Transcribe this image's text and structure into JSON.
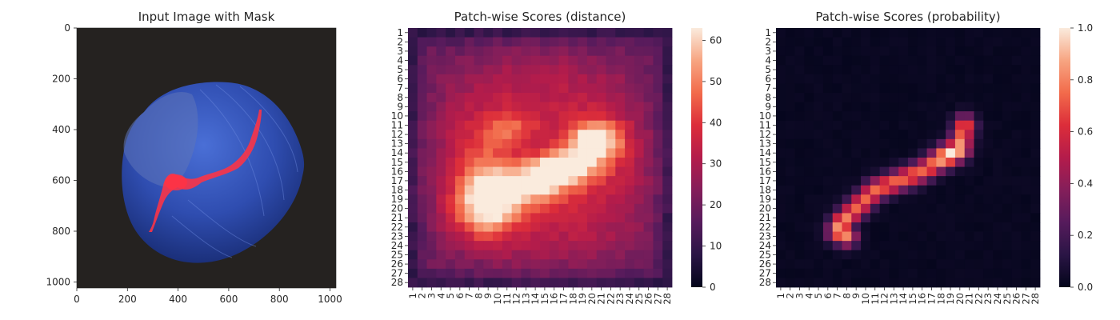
{
  "panels": [
    {
      "title": "Input Image with Mask",
      "type": "image",
      "x_ticks": [
        "0",
        "200",
        "400",
        "600",
        "800",
        "1000"
      ],
      "y_ticks": [
        "0",
        "200",
        "400",
        "600",
        "800",
        "1000"
      ]
    },
    {
      "title": "Patch-wise Scores (distance)",
      "type": "heatmap",
      "colorbar_ticks": [
        "0",
        "10",
        "20",
        "30",
        "40",
        "50",
        "60"
      ]
    },
    {
      "title": "Patch-wise Scores (probability)",
      "type": "heatmap",
      "colorbar_ticks": [
        "0.0",
        "0.2",
        "0.4",
        "0.6",
        "0.8",
        "1.0"
      ]
    }
  ],
  "chart_data": [
    {
      "type": "image",
      "title": "Input Image with Mask",
      "xlim": [
        0,
        1024
      ],
      "ylim": [
        1024,
        0
      ],
      "x_ticks": [
        0,
        200,
        400,
        600,
        800,
        1000
      ],
      "y_ticks": [
        0,
        200,
        400,
        600,
        800,
        1000
      ],
      "content": "blue hazelnut on dark background with a red crack mask",
      "mask_color": "#ff3344"
    },
    {
      "type": "heatmap",
      "title": "Patch-wise Scores (distance)",
      "rows": 28,
      "cols": 28,
      "row_labels": [
        "1",
        "2",
        "3",
        "4",
        "5",
        "6",
        "7",
        "8",
        "9",
        "10",
        "11",
        "12",
        "13",
        "14",
        "15",
        "16",
        "17",
        "18",
        "19",
        "20",
        "21",
        "22",
        "23",
        "24",
        "25",
        "26",
        "27",
        "28"
      ],
      "col_labels": [
        "1",
        "2",
        "3",
        "4",
        "5",
        "6",
        "7",
        "8",
        "9",
        "10",
        "11",
        "12",
        "13",
        "14",
        "15",
        "16",
        "17",
        "18",
        "19",
        "20",
        "21",
        "22",
        "23",
        "24",
        "25",
        "26",
        "27",
        "28"
      ],
      "vmin": 0,
      "vmax": 63,
      "colormap": "rocket",
      "colorbar_ticks": [
        0,
        10,
        20,
        30,
        40,
        50,
        60
      ],
      "background": 22,
      "structure": [
        {
          "kind": "gradient",
          "value": 13,
          "description": "darker border around the grid"
        },
        {
          "kind": "ring",
          "cx": 14.5,
          "cy": 15.0,
          "rx": 9.5,
          "ry": 9.0,
          "sigma": 2.5,
          "value": 11
        },
        {
          "kind": "blob",
          "cx": 20.3,
          "cy": 12.8,
          "rx": 2.8,
          "ry": 2.2,
          "value": 40
        },
        {
          "kind": "blob",
          "cx": 16.5,
          "cy": 15.7,
          "rx": 3.8,
          "ry": 2.0,
          "value": 40
        },
        {
          "kind": "blob",
          "cx": 12.0,
          "cy": 17.8,
          "rx": 4.8,
          "ry": 2.2,
          "value": 34
        },
        {
          "kind": "blob",
          "cx": 8.8,
          "cy": 20.5,
          "rx": 3.2,
          "ry": 2.6,
          "value": 30
        },
        {
          "kind": "blob",
          "cx": 11.5,
          "cy": 11.5,
          "rx": 3.0,
          "ry": 2.0,
          "value": 16
        },
        {
          "kind": "blob",
          "cx": 8.5,
          "cy": 15.5,
          "rx": 2.5,
          "ry": 3.5,
          "value": 12
        }
      ]
    },
    {
      "type": "heatmap",
      "title": "Patch-wise Scores (probability)",
      "rows": 28,
      "cols": 28,
      "row_labels": [
        "1",
        "2",
        "3",
        "4",
        "5",
        "6",
        "7",
        "8",
        "9",
        "10",
        "11",
        "12",
        "13",
        "14",
        "15",
        "16",
        "17",
        "18",
        "19",
        "20",
        "21",
        "22",
        "23",
        "24",
        "25",
        "26",
        "27",
        "28"
      ],
      "col_labels": [
        "1",
        "2",
        "3",
        "4",
        "5",
        "6",
        "7",
        "8",
        "9",
        "10",
        "11",
        "12",
        "13",
        "14",
        "15",
        "16",
        "17",
        "18",
        "19",
        "20",
        "21",
        "22",
        "23",
        "24",
        "25",
        "26",
        "27",
        "28"
      ],
      "vmin": 0,
      "vmax": 1,
      "colormap": "rocket",
      "colorbar_ticks": [
        0.0,
        0.2,
        0.4,
        0.6,
        0.8,
        1.0
      ],
      "background": 0.02,
      "structure": [
        {
          "kind": "ridge",
          "points": [
            [
              20.5,
              11.0
            ],
            [
              20.0,
              13.5
            ],
            [
              16.0,
              16.0
            ],
            [
              11.0,
              18.0
            ],
            [
              9.0,
              20.0
            ],
            [
              7.5,
              21.5
            ],
            [
              7.0,
              22.5
            ],
            [
              8.0,
              23.0
            ]
          ],
          "sigma": 0.8,
          "value": 0.72
        },
        {
          "kind": "blob",
          "cx": 19.0,
          "cy": 14.0,
          "rx": 1.6,
          "ry": 1.3,
          "value": 0.3
        },
        {
          "kind": "blob",
          "cx": 7.5,
          "cy": 22.0,
          "rx": 1.0,
          "ry": 1.2,
          "value": 0.15
        }
      ]
    }
  ]
}
